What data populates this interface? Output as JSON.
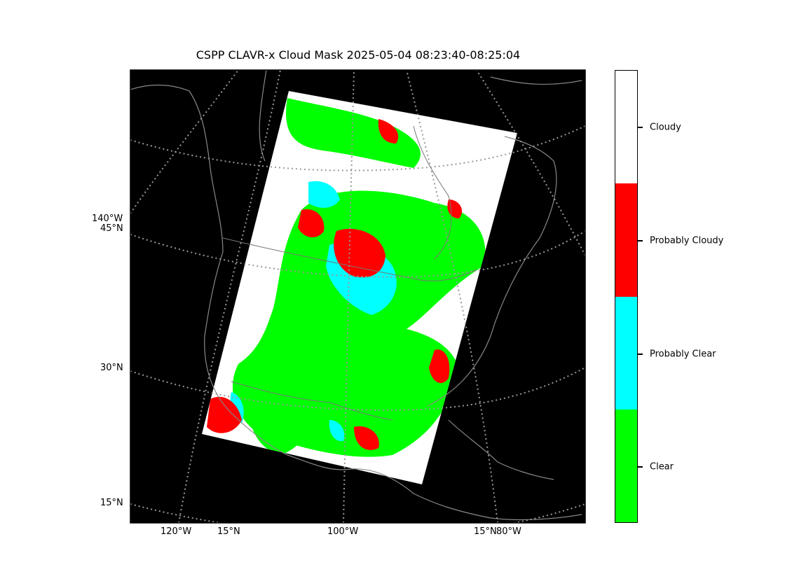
{
  "title": "CSPP CLAVR-x Cloud Mask 2025-05-04 08:23:40-08:25:04",
  "map": {
    "background": "#000000",
    "coastline_color": "#888888",
    "graticule_color": "#999999",
    "lat_labels": [
      "140°W",
      "45°N",
      "30°N",
      "15°N"
    ],
    "lon_labels": [
      "120°W",
      "15°N",
      "100°W",
      "15°N",
      "80°W"
    ]
  },
  "colorbar": {
    "categories": [
      {
        "label": "Cloudy",
        "color": "#ffffff"
      },
      {
        "label": "Probably Cloudy",
        "color": "#ff0000"
      },
      {
        "label": "Probably Clear",
        "color": "#00ffff"
      },
      {
        "label": "Clear",
        "color": "#00ff00"
      }
    ]
  }
}
